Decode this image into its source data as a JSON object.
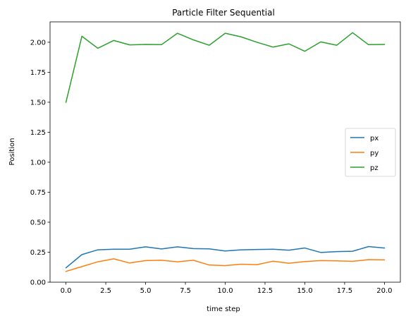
{
  "chart_data": {
    "type": "line",
    "title": "Particle Filter Sequential",
    "xlabel": "time step",
    "ylabel": "Position",
    "xlim": [
      -1,
      21
    ],
    "ylim": [
      0,
      2.17
    ],
    "xticks": [
      "0.0",
      "2.5",
      "5.0",
      "7.5",
      "10.0",
      "12.5",
      "15.0",
      "17.5",
      "20.0"
    ],
    "yticks": [
      "0.00",
      "0.25",
      "0.50",
      "0.75",
      "1.00",
      "1.25",
      "1.50",
      "1.75",
      "2.00"
    ],
    "grid": false,
    "legend_position": "center-right",
    "x": [
      0,
      1,
      2,
      3,
      4,
      5,
      6,
      7,
      8,
      9,
      10,
      11,
      12,
      13,
      14,
      15,
      16,
      17,
      18,
      19,
      20
    ],
    "series": [
      {
        "name": "px",
        "color": "#1f77b4",
        "values": [
          0.12,
          0.23,
          0.27,
          0.275,
          0.275,
          0.295,
          0.277,
          0.295,
          0.28,
          0.278,
          0.26,
          0.27,
          0.273,
          0.275,
          0.267,
          0.285,
          0.248,
          0.255,
          0.258,
          0.297,
          0.285
        ]
      },
      {
        "name": "py",
        "color": "#ff7f0e",
        "values": [
          0.09,
          0.13,
          0.17,
          0.195,
          0.16,
          0.18,
          0.183,
          0.17,
          0.183,
          0.143,
          0.138,
          0.15,
          0.146,
          0.175,
          0.158,
          0.172,
          0.18,
          0.178,
          0.174,
          0.188,
          0.186
        ]
      },
      {
        "name": "pz",
        "color": "#2ca02c",
        "values": [
          1.5,
          2.05,
          1.95,
          2.015,
          1.978,
          1.982,
          1.98,
          2.075,
          2.02,
          1.975,
          2.075,
          2.045,
          2.0,
          1.96,
          1.987,
          1.925,
          2.003,
          1.975,
          2.08,
          1.98,
          1.982
        ]
      }
    ]
  }
}
